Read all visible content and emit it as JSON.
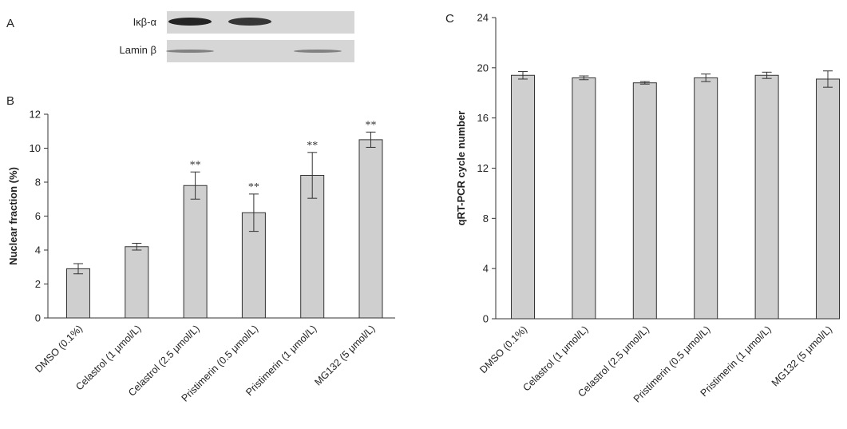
{
  "panels": {
    "a": {
      "letter": "A"
    },
    "b": {
      "letter": "B"
    },
    "c": {
      "letter": "C"
    }
  },
  "blot": {
    "rows": [
      {
        "label": "Iκβ-α",
        "bands": [
          1,
          1,
          0
        ]
      },
      {
        "label": "Lamin β",
        "bands": [
          1,
          0,
          1
        ]
      }
    ],
    "colors": {
      "membrane": "#d6d6d6",
      "band": "#1a1a1a"
    }
  },
  "chart_data": [
    {
      "type": "bar",
      "panel": "B",
      "categories": [
        "DMSO (0.1%)",
        "Celastrol (1 μmol/L)",
        "Celastrol (2.5 μmol/L)",
        "Pristimerin (0.5 μmol/L)",
        "Pristimerin (1 μmol/L)",
        "MG132 (5 μmol/L)"
      ],
      "values": [
        2.9,
        4.2,
        7.8,
        6.2,
        8.4,
        10.5
      ],
      "errors": [
        0.3,
        0.2,
        0.8,
        1.1,
        1.35,
        0.45
      ],
      "annotations": [
        "",
        "",
        "**",
        "**",
        "**",
        "**"
      ],
      "ylabel": "Nuclear fraction (%)",
      "xlabel": "",
      "ylim": [
        0,
        12
      ],
      "yticks": [
        "0",
        "2",
        "4",
        "6",
        "8",
        "10",
        "12"
      ],
      "grid": false
    },
    {
      "type": "bar",
      "panel": "C",
      "categories": [
        "DMSO (0.1%)",
        "Celastrol (1 μmol/L)",
        "Celastrol (2.5 μmol/L)",
        "Pristimerin (0.5 μmol/L)",
        "Pristimerin (1 μmol/L)",
        "MG132 (5 μmol/L)"
      ],
      "values": [
        19.4,
        19.2,
        18.8,
        19.2,
        19.4,
        19.1
      ],
      "errors": [
        0.3,
        0.15,
        0.1,
        0.3,
        0.25,
        0.65
      ],
      "annotations": [
        "",
        "",
        "",
        "",
        "",
        ""
      ],
      "ylabel": "qRT-PCR cycle number",
      "xlabel": "",
      "ylim": [
        0,
        24
      ],
      "yticks": [
        "0",
        "4",
        "8",
        "12",
        "16",
        "20",
        "24"
      ],
      "grid": false
    }
  ]
}
